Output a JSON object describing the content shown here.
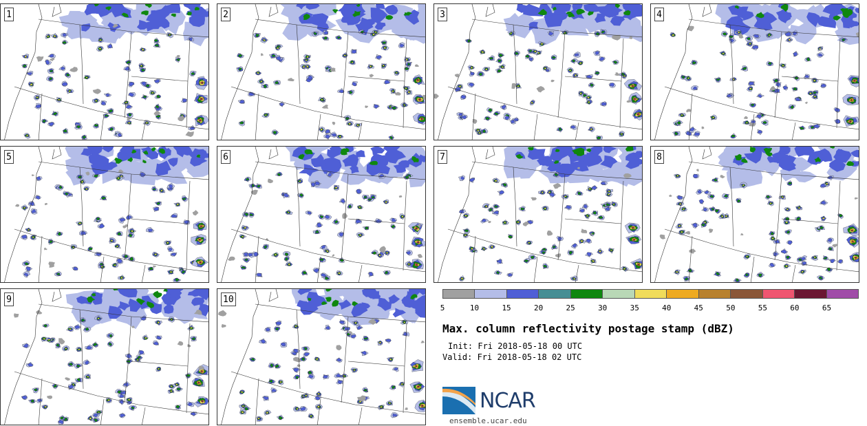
{
  "panels": [
    {
      "label": "1"
    },
    {
      "label": "2"
    },
    {
      "label": "3"
    },
    {
      "label": "4"
    },
    {
      "label": "5"
    },
    {
      "label": "6"
    },
    {
      "label": "7"
    },
    {
      "label": "8"
    },
    {
      "label": "9"
    },
    {
      "label": "10"
    }
  ],
  "colorbar": {
    "colors": [
      "#a0a0a0",
      "#b4bde8",
      "#4f5fd6",
      "#468e94",
      "#0f870f",
      "#b9d8b6",
      "#f0dc5a",
      "#eeaa20",
      "#b8812e",
      "#8a5637",
      "#ef5570",
      "#6b1732",
      "#a04ca8"
    ],
    "ticks": [
      "5",
      "10",
      "15",
      "20",
      "25",
      "30",
      "35",
      "40",
      "45",
      "50",
      "55",
      "60",
      "65"
    ]
  },
  "title": "Max. column reflectivity postage stamp (dBZ)",
  "init": "Init: Fri 2018-05-18 00 UTC",
  "valid": "Valid: Fri 2018-05-18 02 UTC",
  "logo": {
    "text": "NCAR",
    "url": "ensemble.ucar.edu"
  }
}
